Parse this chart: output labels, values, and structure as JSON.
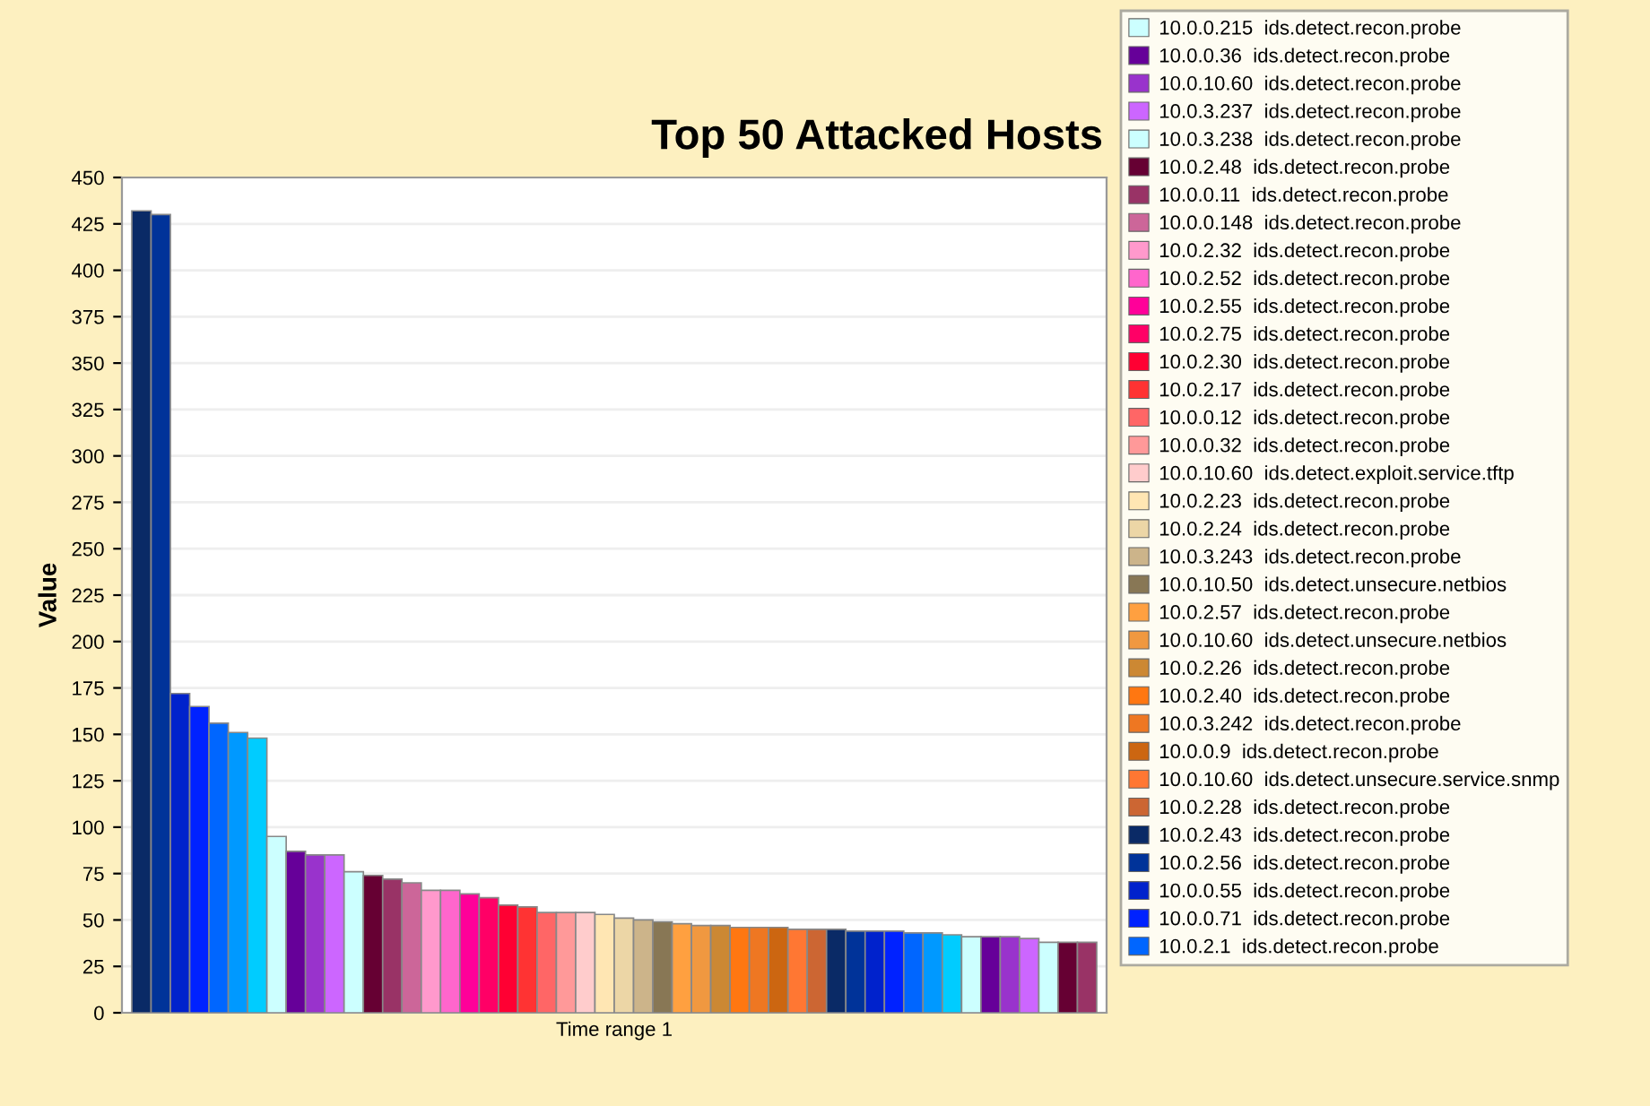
{
  "chart_data": {
    "type": "bar",
    "title": "Top 50 Attacked Hosts",
    "ylabel": "Value",
    "categories": [
      "Time range 1"
    ],
    "ylim": [
      0,
      450
    ],
    "yticks": [
      0,
      25,
      50,
      75,
      100,
      125,
      150,
      175,
      200,
      225,
      250,
      275,
      300,
      325,
      350,
      375,
      400,
      425,
      450
    ],
    "grid": "y",
    "legend": "right",
    "series": [
      {
        "color": "#0a2a66",
        "values": [
          432
        ]
      },
      {
        "color": "#003399",
        "values": [
          430
        ]
      },
      {
        "color": "#0022cc",
        "values": [
          172
        ]
      },
      {
        "color": "#0022ff",
        "values": [
          165
        ]
      },
      {
        "color": "#0066ff",
        "values": [
          156
        ]
      },
      {
        "color": "#0099ff",
        "values": [
          151
        ]
      },
      {
        "color": "#00ccff",
        "values": [
          148
        ]
      },
      {
        "name": "10.0.0.215  ids.detect.recon.probe",
        "color": "#ccffff",
        "values": [
          95
        ]
      },
      {
        "name": "10.0.0.36  ids.detect.recon.probe",
        "color": "#660099",
        "values": [
          87
        ]
      },
      {
        "name": "10.0.10.60  ids.detect.recon.probe",
        "color": "#9933cc",
        "values": [
          85
        ]
      },
      {
        "name": "10.0.3.237  ids.detect.recon.probe",
        "color": "#cc66ff",
        "values": [
          85
        ]
      },
      {
        "name": "10.0.3.238  ids.detect.recon.probe",
        "color": "#ccffff",
        "values": [
          76
        ]
      },
      {
        "name": "10.0.2.48  ids.detect.recon.probe",
        "color": "#660033",
        "values": [
          74
        ]
      },
      {
        "name": "10.0.0.11  ids.detect.recon.probe",
        "color": "#993366",
        "values": [
          72
        ]
      },
      {
        "name": "10.0.0.148  ids.detect.recon.probe",
        "color": "#cc6699",
        "values": [
          70
        ]
      },
      {
        "name": "10.0.2.32  ids.detect.recon.probe",
        "color": "#ff99cc",
        "values": [
          66
        ]
      },
      {
        "name": "10.0.2.52  ids.detect.recon.probe",
        "color": "#ff66cc",
        "values": [
          66
        ]
      },
      {
        "name": "10.0.2.55  ids.detect.recon.probe",
        "color": "#ff0099",
        "values": [
          64
        ]
      },
      {
        "name": "10.0.2.75  ids.detect.recon.probe",
        "color": "#ff0066",
        "values": [
          62
        ]
      },
      {
        "name": "10.0.2.30  ids.detect.recon.probe",
        "color": "#ff0033",
        "values": [
          58
        ]
      },
      {
        "name": "10.0.2.17  ids.detect.recon.probe",
        "color": "#ff3333",
        "values": [
          57
        ]
      },
      {
        "name": "10.0.0.12  ids.detect.recon.probe",
        "color": "#ff6666",
        "values": [
          54
        ]
      },
      {
        "name": "10.0.0.32  ids.detect.recon.probe",
        "color": "#ff9999",
        "values": [
          54
        ]
      },
      {
        "name": "10.0.10.60  ids.detect.exploit.service.tftp",
        "color": "#ffcccc",
        "values": [
          54
        ]
      },
      {
        "name": "10.0.2.23  ids.detect.recon.probe",
        "color": "#ffe6b3",
        "values": [
          53
        ]
      },
      {
        "name": "10.0.2.24  ids.detect.recon.probe",
        "color": "#ecd6a6",
        "values": [
          51
        ]
      },
      {
        "name": "10.0.3.243  ids.detect.recon.probe",
        "color": "#ccb48a",
        "values": [
          50
        ]
      },
      {
        "name": "10.0.10.50  ids.detect.unsecure.netbios",
        "color": "#887755",
        "values": [
          49
        ]
      },
      {
        "name": "10.0.2.57  ids.detect.recon.probe",
        "color": "#ffa040",
        "values": [
          48
        ]
      },
      {
        "name": "10.0.10.60  ids.detect.unsecure.netbios",
        "color": "#f09840",
        "values": [
          47
        ]
      },
      {
        "name": "10.0.2.26  ids.detect.recon.probe",
        "color": "#cc8833",
        "values": [
          47
        ]
      },
      {
        "name": "10.0.2.40  ids.detect.recon.probe",
        "color": "#ff7711",
        "values": [
          46
        ]
      },
      {
        "name": "10.0.3.242  ids.detect.recon.probe",
        "color": "#ee7722",
        "values": [
          46
        ]
      },
      {
        "name": "10.0.0.9  ids.detect.recon.probe",
        "color": "#cc6611",
        "values": [
          46
        ]
      },
      {
        "name": "10.0.10.60  ids.detect.unsecure.service.snmp",
        "color": "#ff7733",
        "values": [
          45
        ]
      },
      {
        "name": "10.0.2.28  ids.detect.recon.probe",
        "color": "#cc6633",
        "values": [
          45
        ]
      },
      {
        "name": "10.0.2.43  ids.detect.recon.probe",
        "color": "#0a2a66",
        "values": [
          45
        ]
      },
      {
        "name": "10.0.2.56  ids.detect.recon.probe",
        "color": "#003399",
        "values": [
          44
        ]
      },
      {
        "name": "10.0.0.55  ids.detect.recon.probe",
        "color": "#0022cc",
        "values": [
          44
        ]
      },
      {
        "name": "10.0.0.71  ids.detect.recon.probe",
        "color": "#0022ff",
        "values": [
          44
        ]
      },
      {
        "name": "10.0.2.1  ids.detect.recon.probe",
        "color": "#0066ff",
        "values": [
          43
        ]
      },
      {
        "color": "#0099ff",
        "values": [
          43
        ]
      },
      {
        "color": "#00ccff",
        "values": [
          42
        ]
      },
      {
        "color": "#ccffff",
        "values": [
          41
        ]
      },
      {
        "color": "#660099",
        "values": [
          41
        ]
      },
      {
        "color": "#9933cc",
        "values": [
          41
        ]
      },
      {
        "color": "#cc66ff",
        "values": [
          40
        ]
      },
      {
        "color": "#ccffff",
        "values": [
          38
        ]
      },
      {
        "color": "#660033",
        "values": [
          38
        ]
      },
      {
        "color": "#993366",
        "values": [
          38
        ]
      }
    ]
  }
}
